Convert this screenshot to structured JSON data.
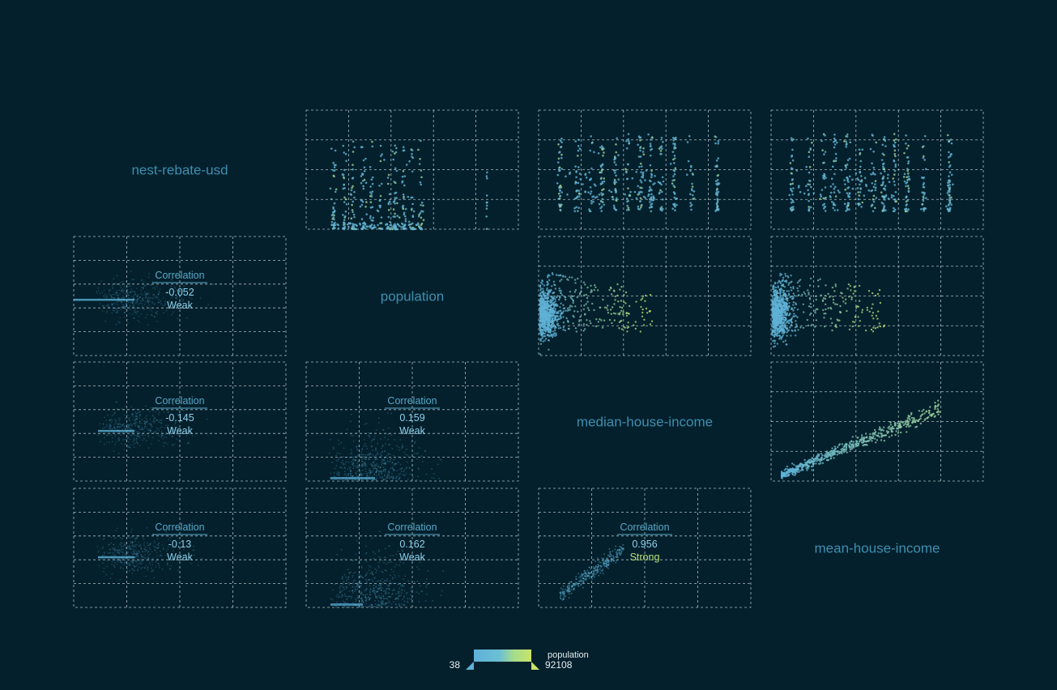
{
  "chart_data": {
    "type": "scatter-matrix",
    "variables": [
      "nest-rebate-usd",
      "population",
      "median-house-income",
      "mean-house-income"
    ],
    "color_variable": "population",
    "color_range": [
      38,
      92108
    ],
    "colors": {
      "background": "#03202c",
      "grid": "#c9d6dc",
      "diag_label": "#3e8fb0",
      "corr_text": "#8fd0ea",
      "corr_title": "#5aa8c9",
      "low": "#5eb1d8",
      "high": "#c8e46a"
    },
    "correlations": [
      {
        "row": 1,
        "col": 0,
        "title": "Correlation",
        "value": "-0.052",
        "strength": "Weak"
      },
      {
        "row": 2,
        "col": 0,
        "title": "Correlation",
        "value": "-0.145",
        "strength": "Weak"
      },
      {
        "row": 3,
        "col": 0,
        "title": "Correlation",
        "value": "-0.13",
        "strength": "Weak"
      },
      {
        "row": 2,
        "col": 1,
        "title": "Correlation",
        "value": "0.159",
        "strength": "Weak"
      },
      {
        "row": 3,
        "col": 1,
        "title": "Correlation",
        "value": "0.162",
        "strength": "Weak"
      },
      {
        "row": 3,
        "col": 2,
        "title": "Correlation",
        "value": "0.956",
        "strength": "Strong"
      }
    ],
    "legend": {
      "title": "population",
      "min_label": "38",
      "max_label": "92108"
    },
    "grid": true
  }
}
